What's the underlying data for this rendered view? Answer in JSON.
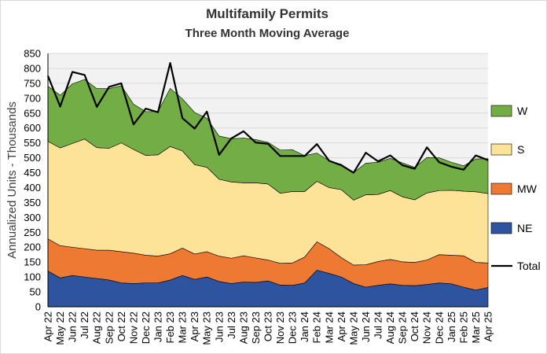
{
  "chart_data": {
    "type": "area",
    "title": "Multifamily  Permits",
    "subtitle": "Three Month Moving Average",
    "ylabel": "Annualized  Units  - Thousands",
    "xlabel": "",
    "ylim": [
      0,
      850
    ],
    "yticks": [
      0,
      50,
      100,
      150,
      200,
      250,
      300,
      350,
      400,
      450,
      500,
      550,
      600,
      650,
      700,
      750,
      800,
      850
    ],
    "grid": true,
    "stacked": true,
    "legend_position": "right",
    "categories": [
      "Apr 22",
      "May 22",
      "Jun 22",
      "Jul 22",
      "Aug 22",
      "Sep 22",
      "Oct 22",
      "Nov 22",
      "Dec 22",
      "Jan 23",
      "Feb 23",
      "Mar 23",
      "Apr 23",
      "May 23",
      "Jun 23",
      "Jul 23",
      "Aug 23",
      "Sep 23",
      "Oct 23",
      "Nov 23",
      "Dec 23",
      "Jan 24",
      "Feb 24",
      "Mar 24",
      "Apr 24",
      "May 24",
      "Jun 24",
      "Jul 24",
      "Aug 24",
      "Sep 24",
      "Oct 24",
      "Nov 24",
      "Dec 24",
      "Jan 25",
      "Feb 25",
      "Mar 25",
      "Apr 25"
    ],
    "series": [
      {
        "name": "NE",
        "color": "#2e54a0",
        "values": [
          120,
          97,
          105,
          100,
          95,
          90,
          80,
          78,
          80,
          80,
          90,
          105,
          92,
          100,
          85,
          78,
          83,
          82,
          87,
          73,
          72,
          80,
          123,
          112,
          100,
          78,
          66,
          72,
          77,
          72,
          71,
          75,
          80,
          77,
          66,
          56,
          65
        ]
      },
      {
        "name": "MW",
        "color": "#ee7932",
        "values": [
          108,
          108,
          95,
          95,
          95,
          100,
          105,
          102,
          93,
          90,
          88,
          92,
          85,
          85,
          85,
          85,
          88,
          82,
          70,
          73,
          75,
          87,
          95,
          83,
          65,
          62,
          75,
          80,
          82,
          79,
          78,
          82,
          95,
          96,
          105,
          93,
          82
        ]
      },
      {
        "name": "S",
        "color": "#fde398",
        "values": [
          327,
          328,
          348,
          368,
          344,
          342,
          365,
          348,
          335,
          340,
          360,
          326,
          300,
          283,
          258,
          256,
          245,
          252,
          255,
          235,
          240,
          220,
          203,
          205,
          228,
          218,
          235,
          225,
          231,
          218,
          210,
          225,
          215,
          218,
          217,
          237,
          233
        ]
      },
      {
        "name": "W",
        "color": "#72ad46",
        "values": [
          185,
          177,
          200,
          200,
          198,
          200,
          192,
          152,
          147,
          145,
          195,
          175,
          175,
          165,
          145,
          145,
          150,
          145,
          140,
          145,
          140,
          120,
          95,
          90,
          85,
          92,
          106,
          108,
          108,
          114,
          109,
          119,
          110,
          94,
          85,
          110,
          117
        ]
      }
    ],
    "total": {
      "name": "Total",
      "color": "#000000",
      "values": [
        775,
        672,
        788,
        778,
        671,
        738,
        750,
        612,
        665,
        653,
        818,
        633,
        598,
        655,
        510,
        565,
        589,
        551,
        547,
        506,
        506,
        506,
        546,
        490,
        475,
        450,
        517,
        488,
        508,
        475,
        463,
        535,
        485,
        470,
        460,
        508,
        492
      ]
    }
  }
}
